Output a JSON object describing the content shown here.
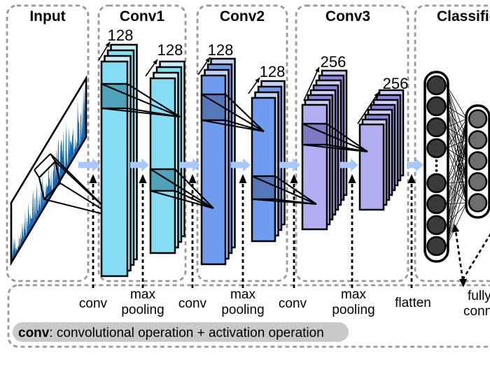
{
  "figure": {
    "sections": [
      {
        "title": "Input"
      },
      {
        "title": "Conv1",
        "stacks": [
          {
            "channels": "128"
          },
          {
            "channels": "128"
          }
        ]
      },
      {
        "title": "Conv2",
        "stacks": [
          {
            "channels": "128"
          },
          {
            "channels": "128"
          }
        ]
      },
      {
        "title": "Conv3",
        "stacks": [
          {
            "channels": "256"
          },
          {
            "channels": "256"
          }
        ]
      },
      {
        "title": "Classification"
      }
    ],
    "ops": [
      {
        "lines": [
          "conv"
        ]
      },
      {
        "lines": [
          "max",
          "pooling"
        ]
      },
      {
        "lines": [
          "conv"
        ]
      },
      {
        "lines": [
          "max",
          "pooling"
        ]
      },
      {
        "lines": [
          "conv"
        ]
      },
      {
        "lines": [
          "max",
          "pooling"
        ]
      },
      {
        "lines": [
          "flatten"
        ]
      },
      {
        "lines": [
          "fully",
          "connected"
        ]
      }
    ],
    "legend": {
      "term": "conv",
      "description": ": convolutional operation + activation operation"
    },
    "classifier": {
      "layer1_neurons_visible": 8,
      "layer2_neurons_visible": 5,
      "ellipsis": "⋮"
    },
    "colors": {
      "conv1_front": "#85DEF3",
      "conv1_light": "#C9EDF9",
      "conv1_window": "#4FA2BA",
      "conv2_front": "#6F9CEF",
      "conv2_light": "#C3D4F9",
      "conv2_window": "#5478B8",
      "conv3_front": "#B2ADF1",
      "conv3_light": "#D0CDF8",
      "conv3_mid": "#8C86DF",
      "conv3_window": "#7F79C4",
      "flow_arrow": "#A9C7F8",
      "signal": "#1668B3",
      "legend_bg": "#C9C9C9",
      "dashed_border": "#999999",
      "neuron_dark": "#3A3A3A",
      "neuron_gray": "#6E6E6E"
    }
  }
}
